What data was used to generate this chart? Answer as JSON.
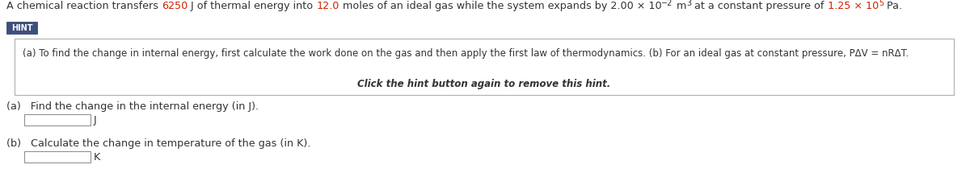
{
  "bg_color": "#ffffff",
  "line1_segments": [
    {
      "text": "A chemical reaction transfers ",
      "color": "#333333",
      "super": false
    },
    {
      "text": "6250",
      "color": "#cc2200",
      "super": false
    },
    {
      "text": " J of thermal energy into ",
      "color": "#333333",
      "super": false
    },
    {
      "text": "12.0",
      "color": "#cc2200",
      "super": false
    },
    {
      "text": " moles of an ideal gas while the system expands by 2.00 × 10",
      "color": "#333333",
      "super": false
    },
    {
      "text": "−2",
      "color": "#333333",
      "super": true
    },
    {
      "text": " m",
      "color": "#333333",
      "super": false
    },
    {
      "text": "3",
      "color": "#333333",
      "super": true
    },
    {
      "text": " at a constant pressure of ",
      "color": "#333333",
      "super": false
    },
    {
      "text": "1.25 × 10",
      "color": "#cc2200",
      "super": false
    },
    {
      "text": "5",
      "color": "#cc2200",
      "super": true
    },
    {
      "text": " Pa.",
      "color": "#333333",
      "super": false
    }
  ],
  "hint_button_text": "HINT",
  "hint_button_facecolor": "#3d4f7c",
  "hint_button_edgecolor": "#2a3a5a",
  "hint_text": "(a) To find the change in internal energy, first calculate the work done on the gas and then apply the first law of thermodynamics. (b) For an ideal gas at constant pressure, PΔV = nRΔT.",
  "hint_click_text": "Click the hint button again to remove this hint.",
  "part_a_label": "(a)   Find the change in the internal energy (in J).",
  "part_b_label": "(b)   Calculate the change in temperature of the gas (in K).",
  "unit_a": "J",
  "unit_b": "K",
  "font_size_main": 9.2,
  "font_size_hint": 8.5,
  "font_size_parts": 9.2,
  "font_size_super": 7.0
}
